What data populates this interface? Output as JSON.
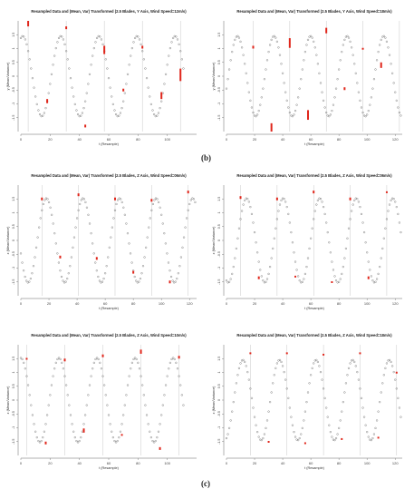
{
  "figure": {
    "subfigure_labels": [
      "(b)",
      "(c)"
    ]
  },
  "colors": {
    "point": "#555555",
    "marker": "#e0261b",
    "grid": "#c8c8c8",
    "axis": "#666666"
  },
  "chart_data": [
    {
      "type": "scatter",
      "title": "Resampled Data and (Mean, Var) Transformed (2.5 Blades, Y Axis, Wind Speed=12m/s)",
      "xlabel": "t (Resample)",
      "ylabel": "y (Mean/Variance)",
      "xlim": [
        0,
        120
      ],
      "ylim": [
        -2,
        2
      ],
      "xticks": [
        0,
        20,
        40,
        60,
        80,
        100
      ],
      "yticks": [
        -1.5,
        -1,
        -0.5,
        0,
        0.5,
        1,
        1.5
      ],
      "series": [
        {
          "period": 26,
          "phase": 0.05,
          "offset": 0.0,
          "amp": 1.0,
          "n": 112
        }
      ],
      "vlines": [
        5,
        31,
        57,
        83,
        109
      ],
      "markers": [
        {
          "x": 5,
          "y": 1.9,
          "len": 0.2
        },
        {
          "x": 18,
          "y": -0.9,
          "len": 0.15
        },
        {
          "x": 31,
          "y": 1.75,
          "len": 0.1
        },
        {
          "x": 44,
          "y": -1.8,
          "len": 0.1
        },
        {
          "x": 57,
          "y": 0.95,
          "len": 0.3
        },
        {
          "x": 70,
          "y": -0.5,
          "len": 0.1
        },
        {
          "x": 83,
          "y": 1.05,
          "len": 0.1
        },
        {
          "x": 96,
          "y": -0.7,
          "len": 0.25
        },
        {
          "x": 109,
          "y": 0.05,
          "len": 0.45
        }
      ]
    },
    {
      "type": "scatter",
      "title": "Resampled Data and (Mean, Var) Transformed (2.5 Blades, Y Axis, Wind Speed=18m/s)",
      "xlabel": "t (Resample)",
      "ylabel": "y (Mean/Variance)",
      "xlim": [
        0,
        125
      ],
      "ylim": [
        -2,
        2
      ],
      "xticks": [
        0,
        20,
        40,
        60,
        80,
        100,
        120
      ],
      "yticks": [
        -1.5,
        -1,
        -0.5,
        0,
        0.5,
        1,
        1.5
      ],
      "series": [
        {
          "period": 26,
          "phase": 0.3,
          "offset": 0.0,
          "amp": 1.0,
          "n": 125
        }
      ],
      "vlines": [
        19,
        45,
        71,
        97,
        123
      ],
      "markers": [
        {
          "x": 19,
          "y": 1.05,
          "len": 0.1
        },
        {
          "x": 32,
          "y": -1.85,
          "len": 0.3
        },
        {
          "x": 45,
          "y": 1.2,
          "len": 0.35
        },
        {
          "x": 58,
          "y": -1.4,
          "len": 0.35
        },
        {
          "x": 71,
          "y": 1.65,
          "len": 0.2
        },
        {
          "x": 84,
          "y": -0.45,
          "len": 0.1
        },
        {
          "x": 97,
          "y": 1.0,
          "len": 0.05
        },
        {
          "x": 110,
          "y": 0.4,
          "len": 0.2
        }
      ]
    },
    {
      "type": "scatter",
      "title": "Resampled Data and (Mean, Var) Transformed (2.5 Blades, Z Axis, Wind Speed=06m/s)",
      "xlabel": "t (Resample)",
      "ylabel": "z (Mean/Variance)",
      "xlim": [
        0,
        125
      ],
      "ylim": [
        -2,
        2
      ],
      "xticks": [
        0,
        20,
        40,
        60,
        80,
        100,
        120
      ],
      "yticks": [
        -1.5,
        -1,
        -0.5,
        0,
        0.5,
        1,
        1.5
      ],
      "series": [
        {
          "period": 26,
          "phase": 0.7,
          "offset": 0.0,
          "amp": 1.05,
          "n": 125
        }
      ],
      "vlines": [
        15,
        41,
        67,
        93,
        119
      ],
      "markers": [
        {
          "x": 15,
          "y": 1.5,
          "len": 0.1
        },
        {
          "x": 28,
          "y": -0.6,
          "len": 0.1
        },
        {
          "x": 41,
          "y": 1.65,
          "len": 0.1
        },
        {
          "x": 54,
          "y": -0.65,
          "len": 0.1
        },
        {
          "x": 67,
          "y": 1.5,
          "len": 0.1
        },
        {
          "x": 80,
          "y": -1.15,
          "len": 0.1
        },
        {
          "x": 93,
          "y": 1.45,
          "len": 0.1
        },
        {
          "x": 106,
          "y": -1.5,
          "len": 0.1
        },
        {
          "x": 119,
          "y": 1.75,
          "len": 0.1
        }
      ]
    },
    {
      "type": "scatter",
      "title": "Resampled Data and (Mean, Var) Transformed (2.5 Blades, Z Axis, Wind Speed=06m/s)",
      "xlabel": "t (Resample)",
      "ylabel": "z (Mean/Variance)",
      "xlim": [
        0,
        125
      ],
      "ylim": [
        -2,
        2
      ],
      "xticks": [
        0,
        20,
        40,
        60,
        80,
        100,
        120
      ],
      "yticks": [
        -1.5,
        -1,
        -0.5,
        0,
        0.5,
        1,
        1.5
      ],
      "series": [
        {
          "period": 26,
          "phase": 0.55,
          "offset": 0.0,
          "amp": 1.05,
          "n": 125
        }
      ],
      "vlines": [
        10,
        36,
        62,
        88,
        114
      ],
      "markers": [
        {
          "x": 10,
          "y": 1.55,
          "len": 0.1
        },
        {
          "x": 23,
          "y": -1.35,
          "len": 0.1
        },
        {
          "x": 36,
          "y": 1.5,
          "len": 0.1
        },
        {
          "x": 49,
          "y": -1.3,
          "len": 0.05
        },
        {
          "x": 62,
          "y": 1.75,
          "len": 0.1
        },
        {
          "x": 75,
          "y": -1.5,
          "len": 0.05
        },
        {
          "x": 88,
          "y": 1.5,
          "len": 0.1
        },
        {
          "x": 101,
          "y": -1.35,
          "len": 0.1
        },
        {
          "x": 114,
          "y": 1.75,
          "len": 0.05
        }
      ]
    },
    {
      "type": "scatter",
      "title": "Resampled Data and (Mean, Var) Transformed (2.5 Blades, Z Axis, Wind Speed=10m/s)",
      "xlabel": "t (Resample)",
      "ylabel": "z (Mean/Variance)",
      "xlim": [
        0,
        120
      ],
      "ylim": [
        -2,
        2
      ],
      "xticks": [
        0,
        20,
        40,
        60,
        80,
        100
      ],
      "yticks": [
        -1.5,
        -1,
        -0.5,
        0,
        0.5,
        1,
        1.5
      ],
      "series": [
        {
          "period": 26,
          "phase": 0.0,
          "offset": 0.0,
          "amp": 1.05,
          "n": 112
        }
      ],
      "vlines": [
        4,
        30,
        56,
        82,
        108
      ],
      "markers": [
        {
          "x": 4,
          "y": 1.5,
          "len": 0.05
        },
        {
          "x": 17,
          "y": -1.55,
          "len": 0.1
        },
        {
          "x": 30,
          "y": 1.45,
          "len": 0.1
        },
        {
          "x": 43,
          "y": -1.1,
          "len": 0.15
        },
        {
          "x": 56,
          "y": 1.6,
          "len": 0.1
        },
        {
          "x": 69,
          "y": -1.25,
          "len": 0.05
        },
        {
          "x": 82,
          "y": 1.75,
          "len": 0.15
        },
        {
          "x": 95,
          "y": -1.75,
          "len": 0.1
        },
        {
          "x": 108,
          "y": 1.55,
          "len": 0.1
        }
      ]
    },
    {
      "type": "scatter",
      "title": "Resampled Data and (Mean, Var) Transformed (2.5 Blades, Z Axis, Wind Speed=18m/s)",
      "xlabel": "t (Resample)",
      "ylabel": "z (Mean/Variance)",
      "xlim": [
        0,
        125
      ],
      "ylim": [
        -2,
        2
      ],
      "xticks": [
        0,
        20,
        40,
        60,
        80,
        100,
        120
      ],
      "yticks": [
        -1.5,
        -1,
        -0.5,
        0,
        0.5,
        1,
        1.5
      ],
      "series": [
        {
          "period": 26,
          "phase": 0.45,
          "offset": 0.0,
          "amp": 1.0,
          "n": 125
        }
      ],
      "vlines": [
        17,
        43,
        69,
        95,
        121
      ],
      "markers": [
        {
          "x": 17,
          "y": 1.7,
          "len": 0.05
        },
        {
          "x": 30,
          "y": -1.5,
          "len": 0.05
        },
        {
          "x": 43,
          "y": 1.7,
          "len": 0.05
        },
        {
          "x": 56,
          "y": -1.55,
          "len": 0.05
        },
        {
          "x": 69,
          "y": 1.65,
          "len": 0.05
        },
        {
          "x": 82,
          "y": -1.4,
          "len": 0.05
        },
        {
          "x": 95,
          "y": 1.7,
          "len": 0.05
        },
        {
          "x": 108,
          "y": -1.35,
          "len": 0.05
        },
        {
          "x": 121,
          "y": 1.0,
          "len": 0.05
        }
      ]
    }
  ]
}
